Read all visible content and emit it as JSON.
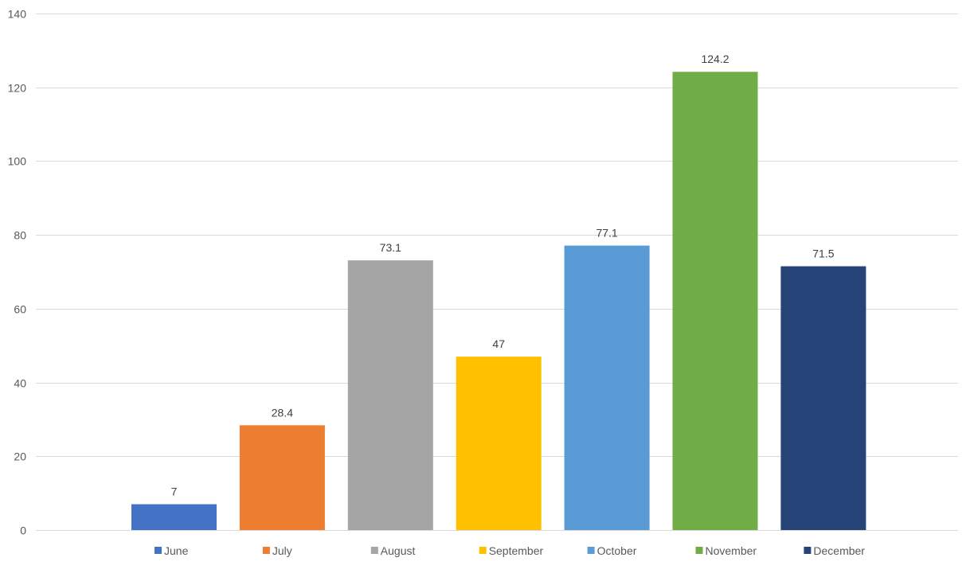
{
  "chart_data": {
    "type": "bar",
    "categories": [
      "June",
      "July",
      "August",
      "September",
      "October",
      "November",
      "December"
    ],
    "values": [
      7,
      28.4,
      73.1,
      47,
      77.1,
      124.2,
      71.5
    ],
    "data_labels": [
      "7",
      "28.4",
      "73.1",
      "47",
      "77.1",
      "124.2",
      "71.5"
    ],
    "colors": [
      "#4472c4",
      "#ed7d31",
      "#a5a5a5",
      "#ffc000",
      "#5b9bd5",
      "#70ad47",
      "#264478"
    ],
    "ylim": [
      0,
      140
    ],
    "yticks": [
      0,
      20,
      40,
      60,
      80,
      100,
      120,
      140
    ],
    "ytick_labels": [
      "0",
      "20",
      "40",
      "60",
      "80",
      "100",
      "120",
      "140"
    ],
    "grid": true,
    "legend_position": "bottom",
    "title": "",
    "xlabel": "",
    "ylabel": ""
  }
}
